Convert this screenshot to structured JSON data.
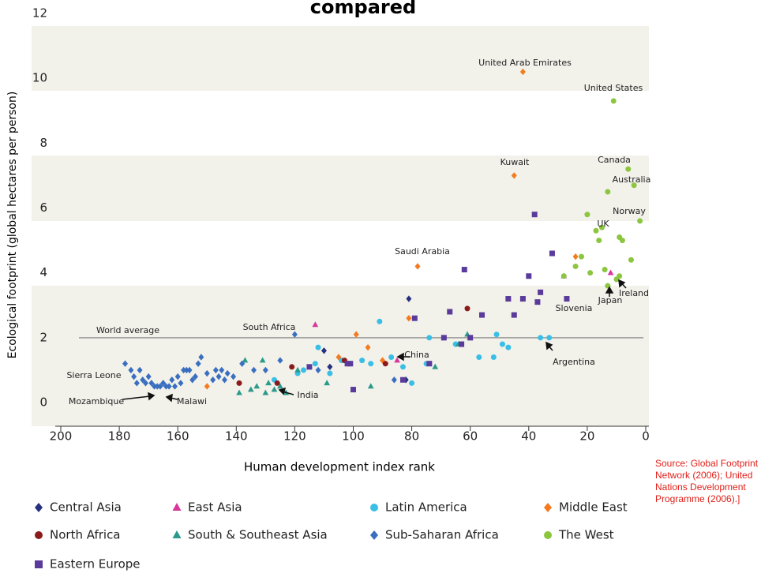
{
  "chart_data": {
    "type": "scatter",
    "title": "compared",
    "x_label": "Human development index rank",
    "y_label": "Ecological footprint (global hectares per person)",
    "xlim": [
      200,
      0
    ],
    "xticks": [
      200,
      180,
      160,
      140,
      120,
      100,
      80,
      60,
      40,
      20,
      0
    ],
    "ylim": [
      0,
      12
    ],
    "yticks": [
      0,
      2,
      4,
      6,
      8,
      10,
      12
    ],
    "reference_line": {
      "value": 2,
      "label": "World average"
    },
    "source": "Source: Global Footprint Network (2006); United Nations Development Programme (2006).]",
    "annotations": [
      "United Arab Emirates",
      "United States",
      "Kuwait",
      "Canada",
      "Australia",
      "Norway",
      "UK",
      "Saudi Arabia",
      "South Africa",
      "China",
      "Argentina",
      "Ireland",
      "Japan",
      "Slovenia",
      "Sierra Leone",
      "Mozambique",
      "Malawi",
      "India"
    ],
    "series": [
      {
        "name": "Central Asia",
        "color": "#25307f",
        "marker": "diamond",
        "x": [
          81,
          110,
          108,
          82
        ],
        "values": [
          3.2,
          1.6,
          1.1,
          0.7
        ]
      },
      {
        "name": "East Asia",
        "color": "#d6379b",
        "marker": "triangle",
        "x": [
          113,
          85,
          28,
          12
        ],
        "values": [
          2.4,
          1.3,
          3.9,
          4.0
        ]
      },
      {
        "name": "Latin America",
        "color": "#39bfe6",
        "marker": "circle",
        "x": [
          91,
          74,
          51,
          49,
          47,
          36,
          33,
          57,
          52,
          80,
          83,
          87,
          94,
          97,
          112,
          104,
          113,
          117,
          108,
          119,
          127,
          75,
          65
        ],
        "values": [
          2.5,
          2.0,
          2.1,
          1.8,
          1.7,
          2.0,
          2.0,
          1.4,
          1.4,
          0.6,
          1.1,
          1.4,
          1.2,
          1.3,
          1.7,
          1.3,
          1.2,
          1.0,
          0.9,
          0.9,
          0.7,
          1.2,
          1.8
        ]
      },
      {
        "name": "Middle East",
        "color": "#f47a20",
        "marker": "diamond",
        "x": [
          42,
          45,
          78,
          81,
          99,
          95,
          105,
          150,
          90,
          24
        ],
        "values": [
          10.2,
          7.0,
          4.2,
          2.6,
          2.1,
          1.7,
          1.4,
          0.5,
          1.3,
          4.5
        ]
      },
      {
        "name": "North Africa",
        "color": "#8b1a1a",
        "marker": "circle",
        "x": [
          61,
          89,
          103,
          121,
          126,
          139
        ],
        "values": [
          2.9,
          1.2,
          1.3,
          1.1,
          0.6,
          0.6
        ]
      },
      {
        "name": "South & Southeast Asia",
        "color": "#2a9a8a",
        "marker": "triangle",
        "x": [
          137,
          131,
          135,
          139,
          133,
          129,
          127,
          123,
          130,
          119,
          109,
          94,
          72,
          61,
          64,
          125
        ],
        "values": [
          1.3,
          1.3,
          0.4,
          0.3,
          0.5,
          0.6,
          0.4,
          0.3,
          0.3,
          1.0,
          0.6,
          0.5,
          1.1,
          2.1,
          1.8,
          0.5
        ]
      },
      {
        "name": "Sub-Saharan Africa",
        "color": "#3a6fc0",
        "marker": "diamond",
        "x": [
          178,
          176,
          175,
          174,
          173,
          172,
          171,
          170,
          169,
          168,
          167,
          166,
          165,
          164,
          163,
          162,
          161,
          160,
          159,
          158,
          157,
          156,
          155,
          154,
          153,
          152,
          150,
          148,
          147,
          146,
          145,
          144,
          143,
          141,
          138,
          134,
          130,
          125,
          120,
          86,
          112
        ],
        "values": [
          1.2,
          1.0,
          0.8,
          0.6,
          1.0,
          0.7,
          0.6,
          0.8,
          0.6,
          0.5,
          0.5,
          0.5,
          0.6,
          0.5,
          0.5,
          0.7,
          0.5,
          0.8,
          0.6,
          1.0,
          1.0,
          1.0,
          0.7,
          0.8,
          1.2,
          1.4,
          0.9,
          0.7,
          1.0,
          0.8,
          1.0,
          0.7,
          0.9,
          0.8,
          1.2,
          1.0,
          1.0,
          1.3,
          2.1,
          0.7,
          1.0
        ]
      },
      {
        "name": "The West",
        "color": "#8cc63f",
        "marker": "circle",
        "x": [
          11,
          6,
          4,
          2,
          15,
          13,
          20,
          17,
          16,
          9,
          8,
          22,
          5,
          24,
          19,
          14,
          10,
          13,
          9,
          28
        ],
        "values": [
          9.3,
          7.2,
          6.7,
          5.6,
          5.4,
          6.5,
          5.8,
          5.3,
          5.0,
          5.1,
          5.0,
          4.5,
          4.4,
          4.2,
          4.0,
          4.1,
          3.8,
          3.6,
          3.9,
          3.9
        ]
      },
      {
        "name": "Eastern Europe",
        "color": "#5a3a9a",
        "marker": "square",
        "x": [
          38,
          32,
          62,
          40,
          36,
          47,
          42,
          27,
          37,
          67,
          45,
          56,
          79,
          69,
          60,
          63,
          74,
          83,
          100,
          102,
          115,
          101
        ],
        "values": [
          5.8,
          4.6,
          4.1,
          3.9,
          3.4,
          3.2,
          3.2,
          3.2,
          3.1,
          2.8,
          2.7,
          2.7,
          2.6,
          2.0,
          2.0,
          1.8,
          1.2,
          0.7,
          0.4,
          1.2,
          1.1,
          1.2
        ]
      }
    ]
  }
}
